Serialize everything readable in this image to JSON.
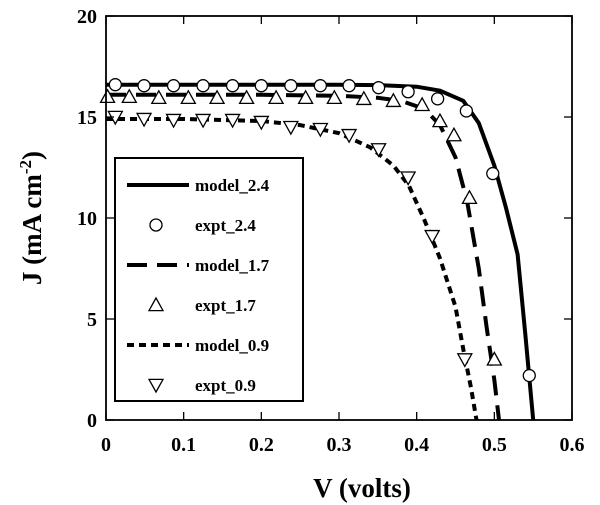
{
  "chart_data": {
    "type": "line",
    "xlabel": "V (volts)",
    "ylabel": "J (mA cm",
    "ylabel_superscript": "-2",
    "ylabel_close": ")",
    "xlim": [
      0,
      0.6
    ],
    "ylim": [
      0,
      20
    ],
    "xticks": [
      0,
      0.1,
      0.2,
      0.3,
      0.4,
      0.5,
      0.6
    ],
    "xtick_labels": [
      "0",
      "0.1",
      "0.2",
      "0.3",
      "0.4",
      "0.5",
      "0.6"
    ],
    "yticks": [
      0,
      5,
      10,
      15,
      20
    ],
    "ytick_labels": [
      "0",
      "5",
      "10",
      "15",
      "20"
    ],
    "grid": false,
    "legend_position": "left-middle",
    "series": [
      {
        "name": "model_2.4",
        "kind": "line",
        "dash": "solid",
        "x": [
          0,
          0.1,
          0.2,
          0.3,
          0.35,
          0.4,
          0.43,
          0.46,
          0.48,
          0.5,
          0.515,
          0.53,
          0.54,
          0.55
        ],
        "y": [
          16.6,
          16.6,
          16.6,
          16.6,
          16.58,
          16.5,
          16.3,
          15.8,
          14.7,
          12.6,
          10.5,
          8.2,
          4.2,
          0
        ]
      },
      {
        "name": "expt_2.4",
        "kind": "marker",
        "marker": "circle",
        "x": [
          0.012,
          0.049,
          0.087,
          0.125,
          0.163,
          0.2,
          0.238,
          0.276,
          0.313,
          0.351,
          0.389,
          0.427,
          0.464,
          0.498,
          0.545
        ],
        "y": [
          16.6,
          16.55,
          16.55,
          16.55,
          16.55,
          16.55,
          16.55,
          16.55,
          16.55,
          16.45,
          16.25,
          15.9,
          15.3,
          12.2,
          2.2
        ]
      },
      {
        "name": "model_1.7",
        "kind": "line",
        "dash": "long",
        "x": [
          0,
          0.1,
          0.2,
          0.3,
          0.35,
          0.38,
          0.41,
          0.43,
          0.45,
          0.465,
          0.48,
          0.49,
          0.5,
          0.506
        ],
        "y": [
          16.1,
          16.1,
          16.1,
          16.05,
          15.95,
          15.8,
          15.4,
          14.6,
          13.0,
          10.8,
          7.5,
          4.6,
          2.0,
          0
        ]
      },
      {
        "name": "expt_1.7",
        "kind": "marker",
        "marker": "triangle-up",
        "x": [
          0.002,
          0.03,
          0.068,
          0.106,
          0.143,
          0.181,
          0.219,
          0.257,
          0.294,
          0.332,
          0.37,
          0.407,
          0.43,
          0.448,
          0.468,
          0.5
        ],
        "y": [
          16.0,
          16.0,
          15.95,
          15.95,
          15.95,
          15.95,
          15.95,
          15.95,
          15.95,
          15.9,
          15.8,
          15.6,
          14.8,
          14.1,
          11.0,
          3.0
        ]
      },
      {
        "name": "model_0.9",
        "kind": "line",
        "dash": "short",
        "x": [
          0,
          0.1,
          0.2,
          0.25,
          0.3,
          0.34,
          0.37,
          0.39,
          0.41,
          0.43,
          0.45,
          0.46,
          0.47,
          0.477
        ],
        "y": [
          14.9,
          14.9,
          14.8,
          14.6,
          14.2,
          13.5,
          12.6,
          11.6,
          9.9,
          8.0,
          5.6,
          3.5,
          1.6,
          0
        ]
      },
      {
        "name": "expt_0.9",
        "kind": "marker",
        "marker": "triangle-down",
        "x": [
          0.012,
          0.049,
          0.087,
          0.125,
          0.163,
          0.2,
          0.238,
          0.276,
          0.313,
          0.351,
          0.389,
          0.42,
          0.462
        ],
        "y": [
          15.0,
          14.9,
          14.85,
          14.85,
          14.85,
          14.75,
          14.5,
          14.4,
          14.1,
          13.4,
          12.0,
          9.1,
          3.0
        ]
      }
    ]
  }
}
